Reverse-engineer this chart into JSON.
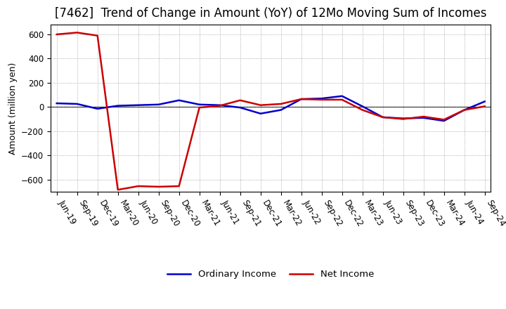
{
  "title": "[7462]  Trend of Change in Amount (YoY) of 12Mo Moving Sum of Incomes",
  "ylabel": "Amount (million yen)",
  "xlabels": [
    "Jun-19",
    "Sep-19",
    "Dec-19",
    "Mar-20",
    "Jun-20",
    "Sep-20",
    "Dec-20",
    "Mar-21",
    "Jun-21",
    "Sep-21",
    "Dec-21",
    "Mar-22",
    "Jun-22",
    "Sep-22",
    "Dec-22",
    "Mar-23",
    "Jun-23",
    "Sep-23",
    "Dec-23",
    "Mar-24",
    "Jun-24",
    "Sep-24"
  ],
  "ordinary_income": [
    30,
    25,
    -15,
    10,
    15,
    20,
    55,
    20,
    15,
    -5,
    -55,
    -25,
    65,
    70,
    90,
    5,
    -85,
    -95,
    -90,
    -115,
    -25,
    45
  ],
  "net_income": [
    600,
    615,
    590,
    -685,
    -655,
    -660,
    -655,
    -5,
    10,
    55,
    15,
    25,
    65,
    60,
    60,
    -25,
    -85,
    -100,
    -80,
    -105,
    -25,
    5
  ],
  "ordinary_color": "#0000CC",
  "net_color": "#CC0000",
  "ylim": [
    -700,
    680
  ],
  "yticks": [
    -600,
    -400,
    -200,
    0,
    200,
    400,
    600
  ],
  "background_color": "#FFFFFF",
  "grid_color": "#999999",
  "title_fontsize": 12,
  "axis_fontsize": 9,
  "tick_fontsize": 8.5,
  "legend_fontsize": 9.5,
  "linewidth": 1.8
}
